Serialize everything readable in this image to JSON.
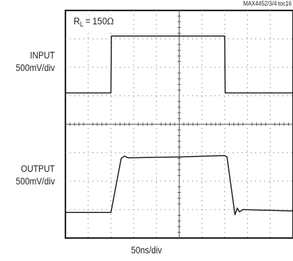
{
  "figure_id": "MAX4452/3/4 toc16",
  "legend": {
    "symbol": "R",
    "subscript": "L",
    "value": "150",
    "unit": "Ω"
  },
  "channels": {
    "input": {
      "name": "INPUT",
      "scale": "500mV/div"
    },
    "output": {
      "name": "OUTPUT",
      "scale": "500mV/div"
    }
  },
  "x_scale": "50ns/div",
  "chart_data": {
    "type": "line",
    "title": "",
    "xlabel": "50ns/div",
    "ylabel": "",
    "grid": true,
    "xlim": [
      0,
      10
    ],
    "ylim": [
      0,
      8
    ],
    "x_units": "divisions",
    "y_units": "divisions",
    "series": [
      {
        "name": "INPUT",
        "x": [
          0,
          2.0,
          2.02,
          7.0,
          7.02,
          10
        ],
        "y": [
          5.1,
          5.1,
          7.1,
          7.1,
          5.1,
          5.1
        ]
      },
      {
        "name": "OUTPUT",
        "x": [
          0,
          2.0,
          2.45,
          2.6,
          2.75,
          5.0,
          7.0,
          7.1,
          7.45,
          7.55,
          7.65,
          7.8,
          10
        ],
        "y": [
          0.9,
          0.9,
          2.8,
          2.88,
          2.82,
          2.85,
          2.9,
          2.85,
          0.82,
          1.05,
          0.92,
          1.0,
          0.95
        ]
      }
    ]
  }
}
